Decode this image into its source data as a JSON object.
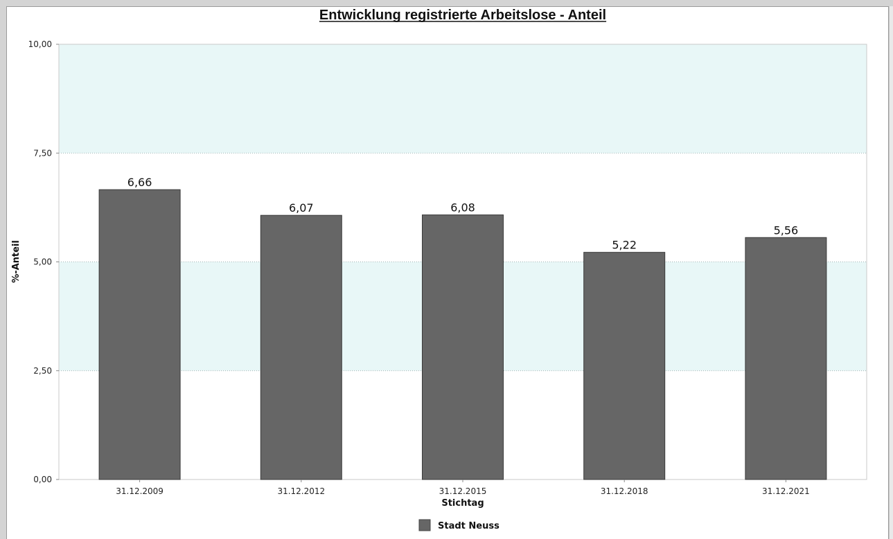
{
  "chart_data": {
    "type": "bar",
    "title": "Entwicklung registrierte Arbeitslose - Anteil",
    "xlabel": "Stichtag",
    "ylabel": "%-Anteil",
    "categories": [
      "31.12.2009",
      "31.12.2012",
      "31.12.2015",
      "31.12.2018",
      "31.12.2021"
    ],
    "series": [
      {
        "name": "Stadt Neuss",
        "values": [
          6.66,
          6.07,
          6.08,
          5.22,
          5.56
        ],
        "value_labels": [
          "6,66",
          "6,07",
          "6,08",
          "5,22",
          "5,56"
        ],
        "color": "#666666"
      }
    ],
    "ylim": [
      0,
      10
    ],
    "yticks": [
      0,
      2.5,
      5,
      7.5,
      10
    ],
    "ytick_labels": [
      "0,00",
      "2,50",
      "5,00",
      "7,50",
      "10,00"
    ],
    "grid": true,
    "band_color": "#e8f7f7",
    "legend_position": "bottom-center"
  }
}
